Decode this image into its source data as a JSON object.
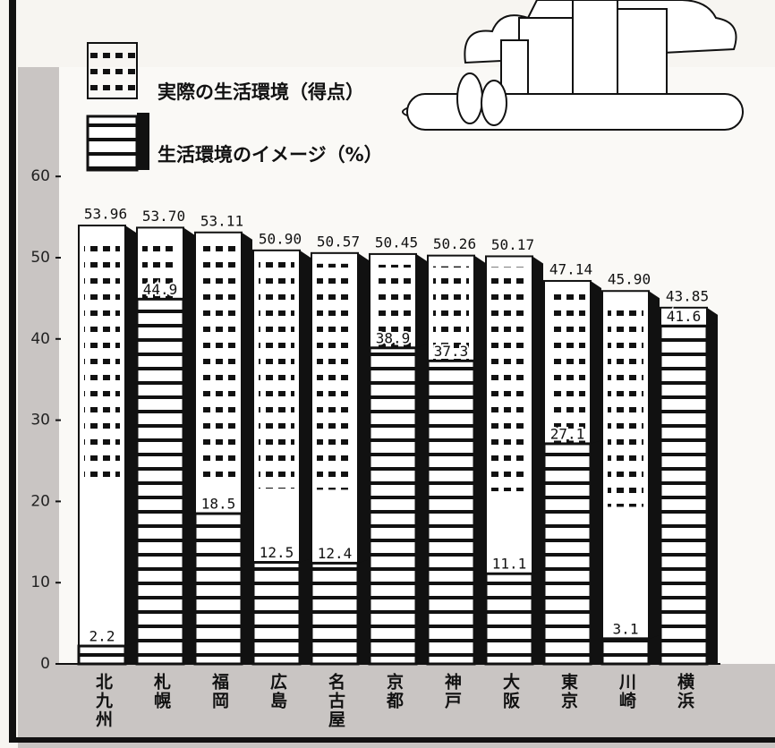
{
  "chart_data": {
    "type": "bar",
    "categories": [
      "北九州",
      "札幌",
      "福岡",
      "広島",
      "名古屋",
      "京都",
      "神戸",
      "大阪",
      "東京",
      "川崎",
      "横浜"
    ],
    "series": [
      {
        "name": "実際の生活環境（得点）",
        "color": "#ffffff",
        "values": [
          53.96,
          53.7,
          53.11,
          50.9,
          50.57,
          50.45,
          50.26,
          50.17,
          47.14,
          45.9,
          43.85
        ],
        "value_labels": [
          "53.96",
          "53.70",
          "53.11",
          "50.90",
          "50.57",
          "50.45",
          "50.26",
          "50.17",
          "47.14",
          "45.90",
          "43.85"
        ]
      },
      {
        "name": "生活環境のイメージ（%）",
        "color": "#111111",
        "values": [
          2.2,
          44.9,
          18.5,
          12.5,
          12.4,
          38.9,
          37.3,
          11.1,
          27.1,
          3.1,
          41.6
        ]
      }
    ],
    "ylim": [
      0,
      80
    ],
    "yticks": [
      0,
      10,
      20,
      30,
      40,
      50,
      60
    ],
    "grid": false
  }
}
